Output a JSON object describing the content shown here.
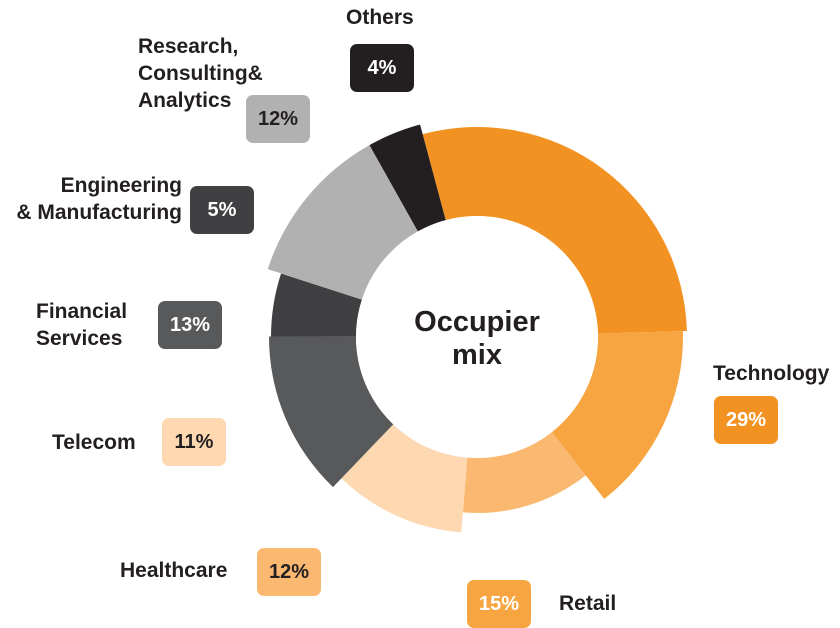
{
  "chart_data": {
    "type": "pie",
    "style": "donut",
    "center_label_line1": "Occupier",
    "center_label_line2": "mix",
    "segments": [
      {
        "name": "Technology",
        "value": 29,
        "label": "29%",
        "color": "#f29222",
        "text_color": "#ffffff"
      },
      {
        "name": "Retail",
        "value": 15,
        "label": "15%",
        "color": "#f7a540",
        "text_color": "#ffffff"
      },
      {
        "name": "Healthcare",
        "value": 12,
        "label": "12%",
        "color": "#fbb871",
        "text_color": "#231f20"
      },
      {
        "name": "Telecom",
        "value": 11,
        "label": "11%",
        "color": "#fdd8b1",
        "text_color": "#231f20"
      },
      {
        "name": "Financial\nServices",
        "value": 13,
        "label": "13%",
        "color": "#58595b",
        "text_color": "#ffffff"
      },
      {
        "name": "Engineering\n& Manufacturing",
        "value": 5,
        "label": "5%",
        "color": "#404042",
        "text_color": "#ffffff"
      },
      {
        "name": "Research,\nConsulting&\nAnalytics",
        "value": 12,
        "label": "12%",
        "color": "#b1b1b1",
        "text_color": "#231f20"
      },
      {
        "name": "Others",
        "value": 4,
        "label": "4%",
        "color": "#231f20",
        "text_color": "#ffffff"
      }
    ]
  }
}
